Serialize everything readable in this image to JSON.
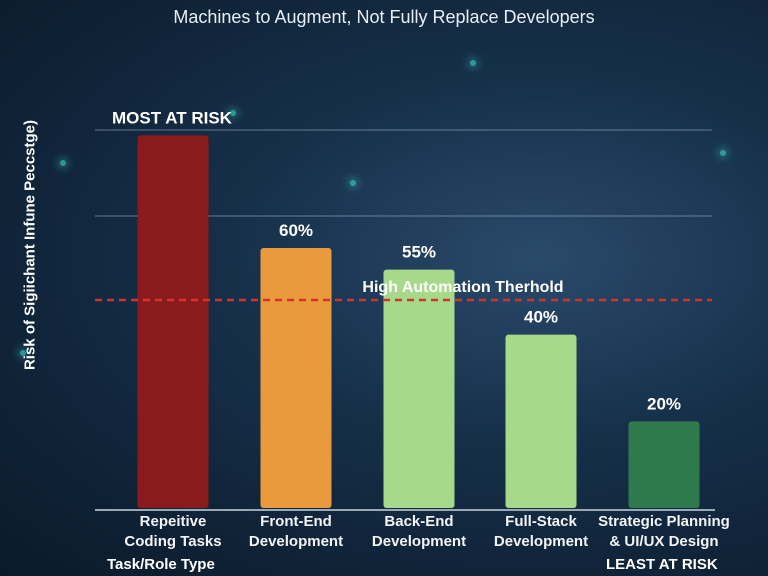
{
  "chart_data": {
    "type": "bar",
    "title": "Machines to Augment, Not Fully Replace Developers",
    "xlabel": "Task/Role Type",
    "ylabel": "Risk of Sigiichant Infune Peccstge)",
    "categories": [
      "Repeitive\nCoding Tasks",
      "Front-End\nDevelopment",
      "Back-End\nDevelopment",
      "Full-Stack\nDevelopment",
      "Strategic Planning\n& UI/UX Design"
    ],
    "values": [
      86,
      60,
      55,
      40,
      20
    ],
    "data_labels": [
      "MOST AT RISK",
      "60%",
      "55%",
      "40%",
      "20%"
    ],
    "colors": [
      "#8b1a1c",
      "#e89a3c",
      "#a6d98a",
      "#a6d98a",
      "#2f7a4c"
    ],
    "ylim": [
      0,
      90
    ],
    "grid": true,
    "threshold": {
      "label": "High Automation Therhold",
      "value": 48,
      "color": "#d9302c"
    },
    "annotations": {
      "least_at_risk": "LEAST AT RISK"
    }
  }
}
